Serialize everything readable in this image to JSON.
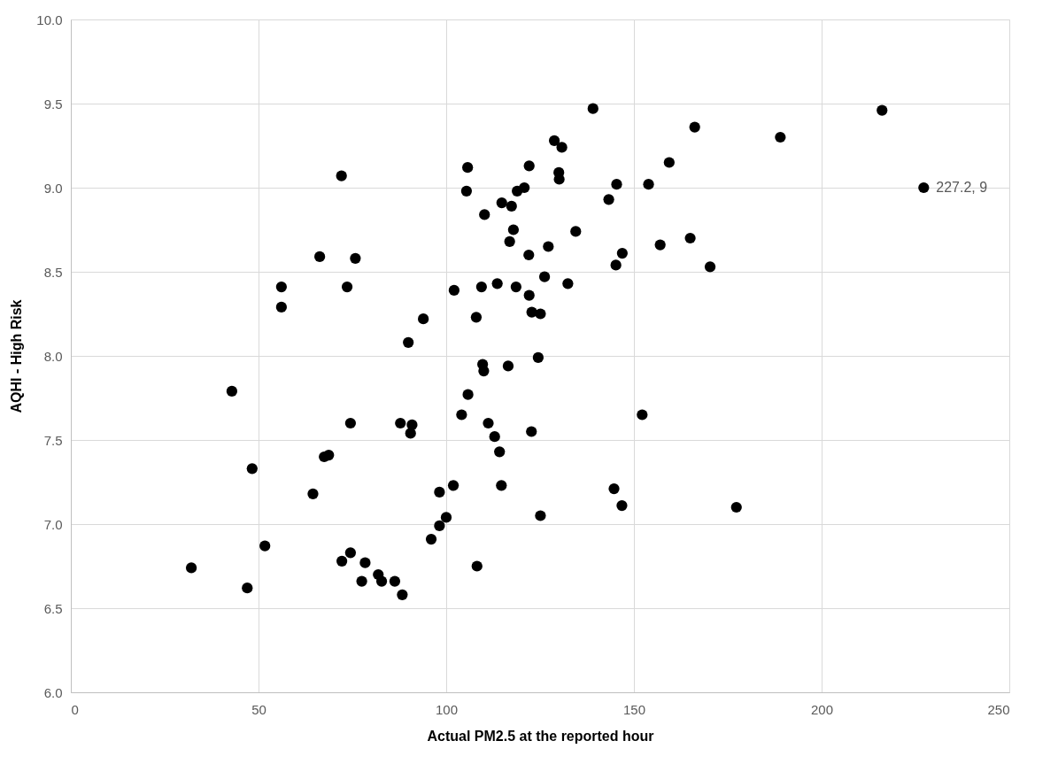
{
  "chart_data": {
    "type": "scatter",
    "xlabel": "Actual PM2.5 at the reported hour",
    "ylabel": "AQHI - High Risk",
    "xlim": [
      0,
      250
    ],
    "ylim": [
      6,
      10
    ],
    "xticks": [
      0,
      50,
      100,
      150,
      200,
      250
    ],
    "yticks": [
      {
        "value": 6,
        "label": "6.0"
      },
      {
        "value": 6.5,
        "label": "6.5"
      },
      {
        "value": 7,
        "label": "7.0"
      },
      {
        "value": 7.5,
        "label": "7.5"
      },
      {
        "value": 8,
        "label": "8.0"
      },
      {
        "value": 8.5,
        "label": "8.5"
      },
      {
        "value": 9,
        "label": "9.0"
      },
      {
        "value": 9.5,
        "label": "9.5"
      },
      {
        "value": 10,
        "label": "10.0"
      }
    ],
    "grid": true,
    "marker": "circle",
    "series": [
      {
        "color": "#000000",
        "x": [
          72.1,
          105.7,
          122.1,
          105.4,
          120.8,
          118.9,
          114.8,
          117.4,
          110.2,
          117.9,
          116.9,
          122.0,
          66.3,
          75.8,
          56.1,
          73.6,
          56.1,
          102.1,
          109.4,
          113.6,
          118.6,
          122.1,
          122.8,
          93.9,
          108.0,
          89.9,
          109.7,
          110.0,
          116.5,
          124.5,
          139.1,
          216.1,
          166.2,
          189.0,
          128.8,
          130.8,
          159.4,
          130.0,
          130.1,
          145.4,
          153.9,
          143.3,
          227.2,
          134.5,
          127.2,
          157.0,
          165.0,
          146.9,
          145.2,
          170.3,
          126.2,
          132.4,
          125.1,
          42.9,
          105.8,
          104.1,
          74.5,
          87.8,
          90.9,
          90.5,
          111.2,
          112.9,
          122.7,
          114.2,
          48.3,
          67.5,
          68.7,
          64.5,
          101.9,
          98.2,
          114.7,
          100.0,
          98.2,
          96.0,
          51.7,
          32.1,
          74.5,
          72.2,
          78.4,
          81.9,
          82.8,
          77.5,
          86.3,
          88.3,
          47.0,
          108.2,
          152.2,
          144.7,
          146.8,
          177.3,
          125.1
        ],
        "values": [
          9.07,
          9.12,
          9.13,
          8.98,
          9.0,
          8.98,
          8.91,
          8.89,
          8.84,
          8.75,
          8.68,
          8.6,
          8.59,
          8.58,
          8.41,
          8.41,
          8.29,
          8.39,
          8.41,
          8.43,
          8.41,
          8.36,
          8.26,
          8.22,
          8.23,
          8.08,
          7.95,
          7.91,
          7.94,
          7.99,
          9.47,
          9.46,
          9.36,
          9.3,
          9.28,
          9.24,
          9.15,
          9.09,
          9.05,
          9.02,
          9.02,
          8.93,
          9,
          8.74,
          8.65,
          8.66,
          8.7,
          8.61,
          8.54,
          8.53,
          8.47,
          8.43,
          8.25,
          7.79,
          7.77,
          7.65,
          7.6,
          7.6,
          7.59,
          7.54,
          7.6,
          7.52,
          7.55,
          7.43,
          7.33,
          7.4,
          7.41,
          7.18,
          7.23,
          7.19,
          7.23,
          7.04,
          6.99,
          6.91,
          6.87,
          6.74,
          6.83,
          6.78,
          6.77,
          6.7,
          6.66,
          6.66,
          6.66,
          6.58,
          6.62,
          6.75,
          7.65,
          7.21,
          7.11,
          7.1,
          7.05
        ],
        "value_labels": [
          null,
          null,
          null,
          null,
          null,
          null,
          null,
          null,
          null,
          null,
          null,
          null,
          null,
          null,
          null,
          null,
          null,
          null,
          null,
          null,
          null,
          null,
          null,
          null,
          null,
          null,
          null,
          null,
          null,
          null,
          null,
          null,
          null,
          null,
          null,
          null,
          null,
          null,
          null,
          null,
          null,
          null,
          "227.2, 9",
          null,
          null,
          null,
          null,
          null,
          null,
          null,
          null,
          null,
          null,
          null,
          null,
          null,
          null,
          null,
          null,
          null,
          null,
          null,
          null,
          null,
          null,
          null,
          null,
          null,
          null,
          null,
          null,
          null,
          null,
          null,
          null,
          null,
          null,
          null,
          null,
          null,
          null,
          null,
          null,
          null,
          null,
          null,
          null,
          null,
          null,
          null,
          null
        ]
      }
    ]
  }
}
